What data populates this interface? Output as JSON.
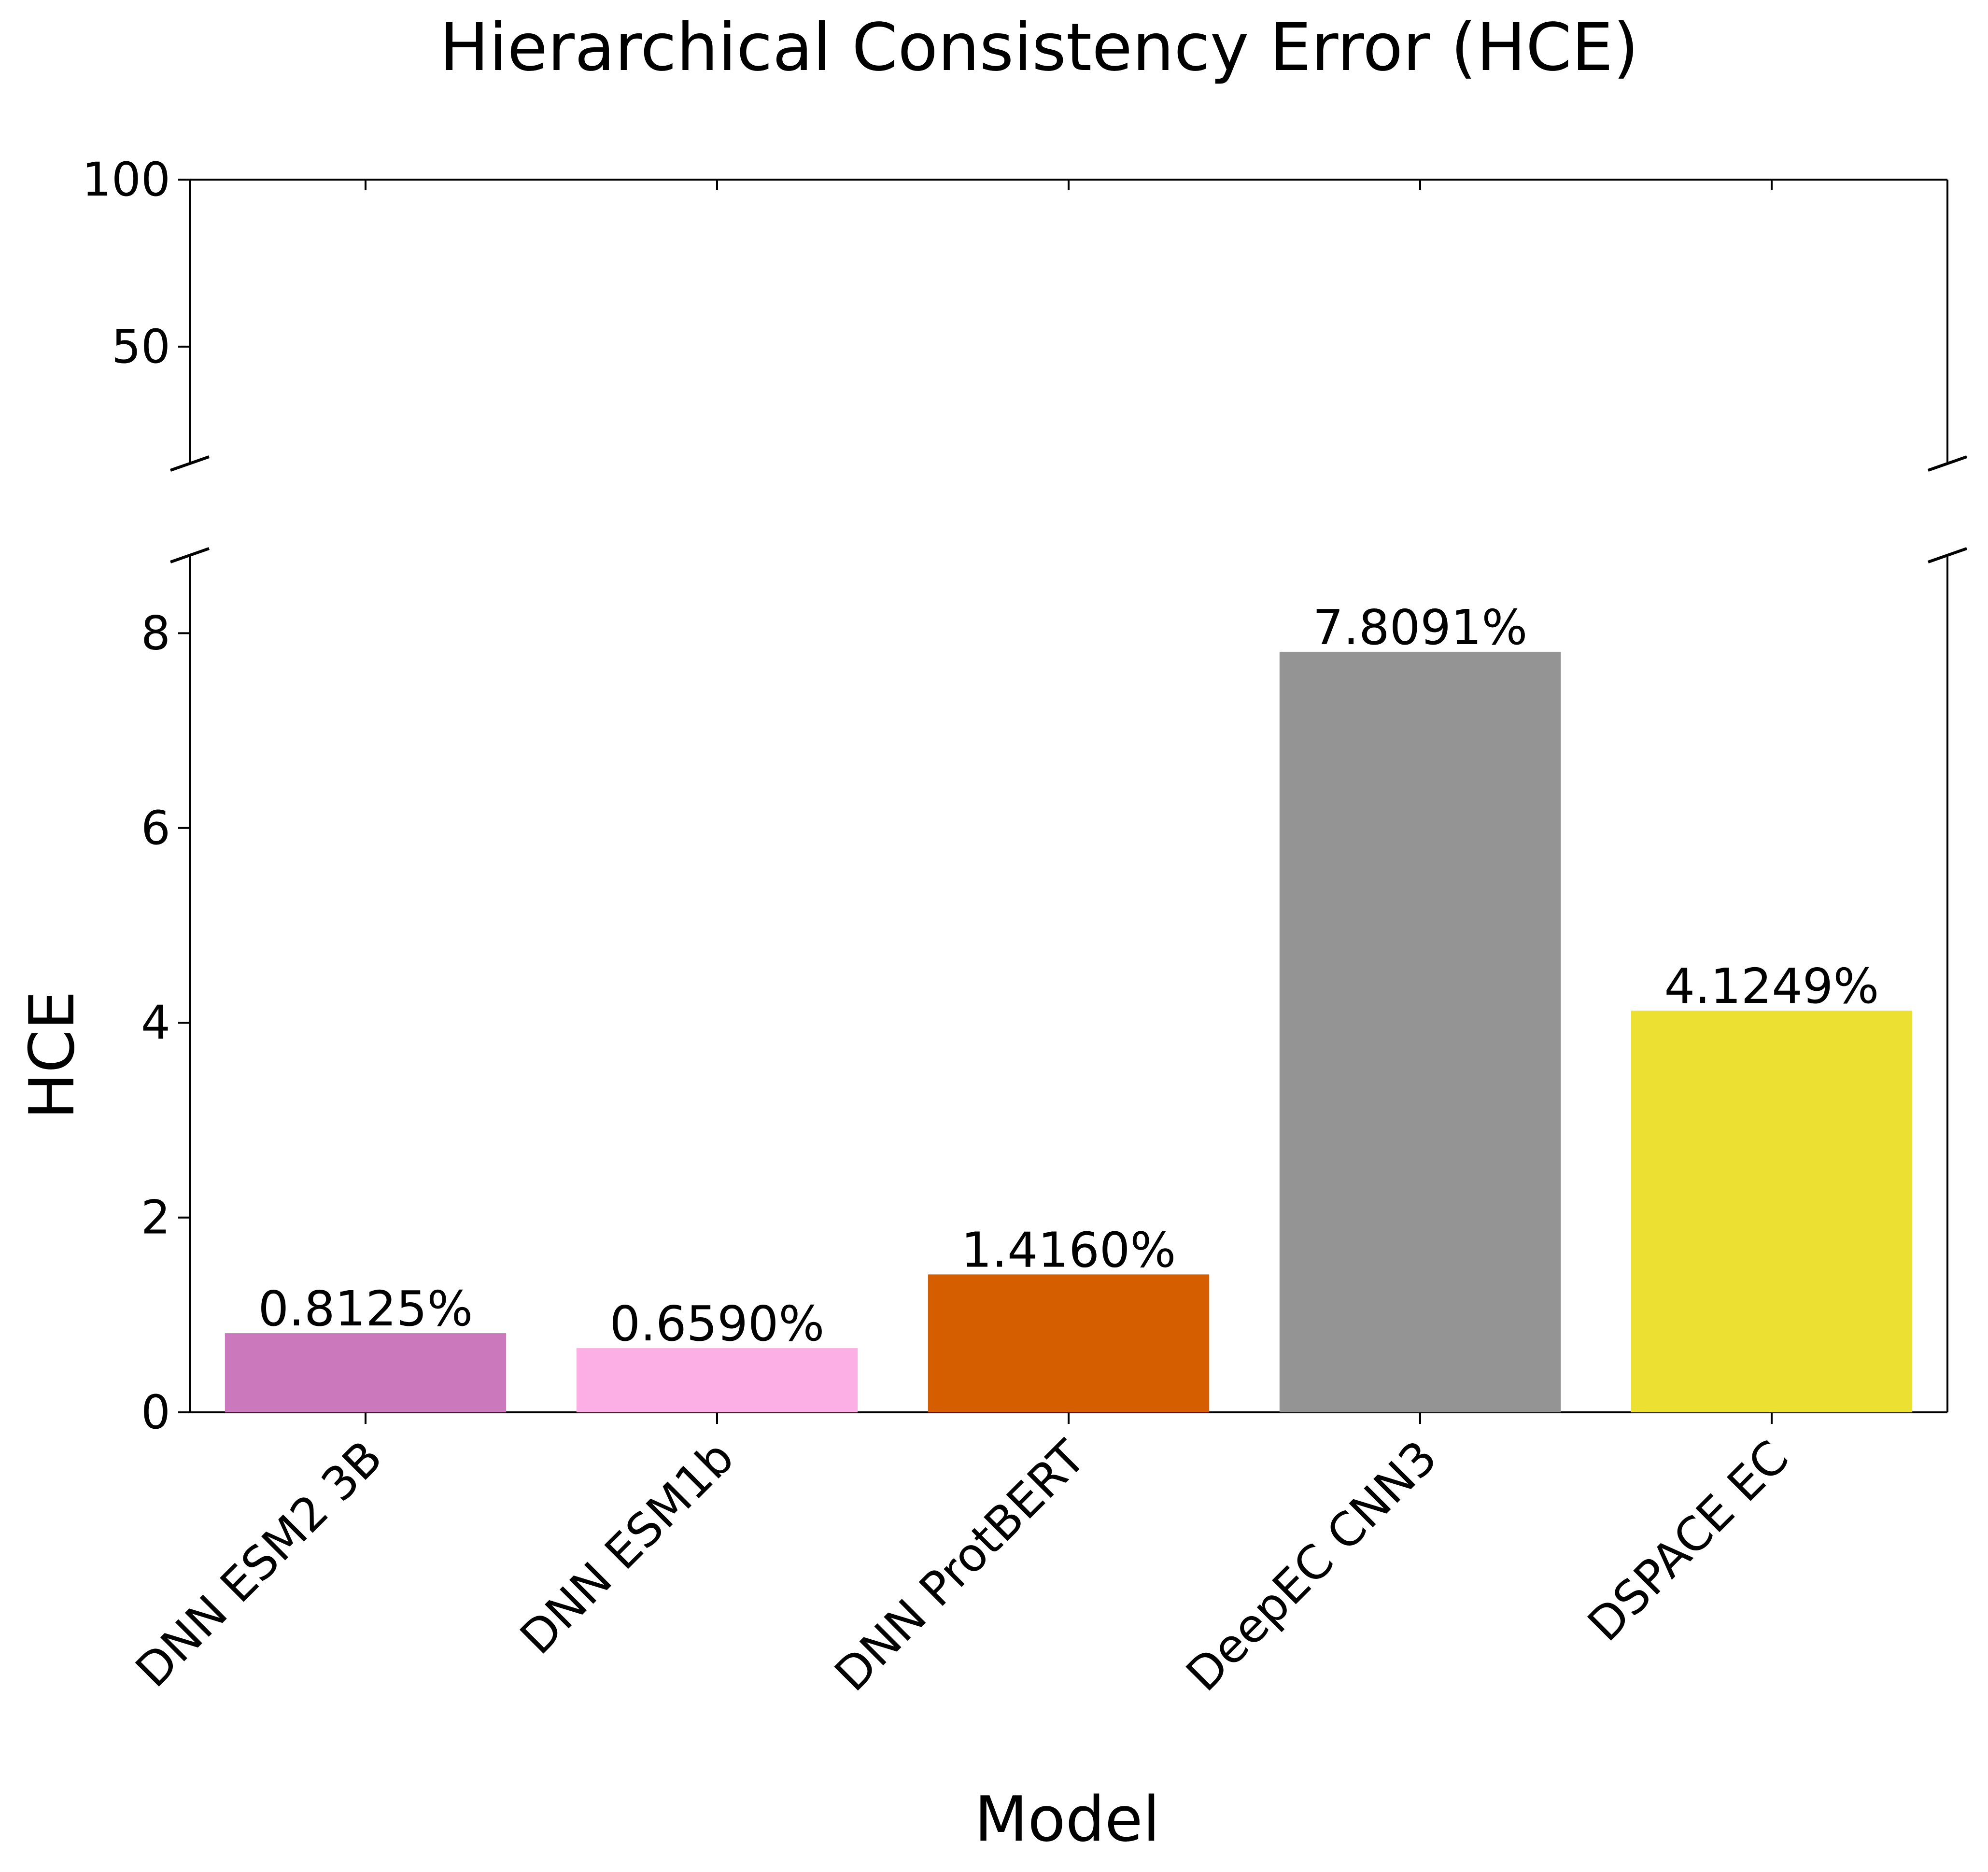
{
  "chart_data": {
    "type": "bar",
    "title": "Hierarchical Consistency Error (HCE)",
    "xlabel": "Model",
    "ylabel": "HCE",
    "categories": [
      "DNN ESM2 3B",
      "DNN ESM1b",
      "DNN ProtBERT",
      "DeepEC CNN3",
      "DSPACE EC"
    ],
    "values": [
      0.8125,
      0.659,
      1.416,
      7.8091,
      4.1249
    ],
    "value_labels": [
      "0.8125%",
      "0.6590%",
      "1.4160%",
      "7.8091%",
      "4.1249%"
    ],
    "colors": [
      "#cc78bc",
      "#fbafe4",
      "#d55e00",
      "#949494",
      "#ece133"
    ],
    "broken_y_axis": true,
    "upper_panel": {
      "ylim": [
        15,
        100
      ],
      "yticks": [
        50,
        100
      ],
      "ytick_labels": [
        "50",
        "100"
      ]
    },
    "lower_panel": {
      "ylim": [
        0,
        8.8
      ],
      "yticks": [
        0,
        2,
        4,
        6,
        8
      ],
      "ytick_labels": [
        "0",
        "2",
        "4",
        "6",
        "8"
      ]
    },
    "grid": false,
    "legend": false
  }
}
